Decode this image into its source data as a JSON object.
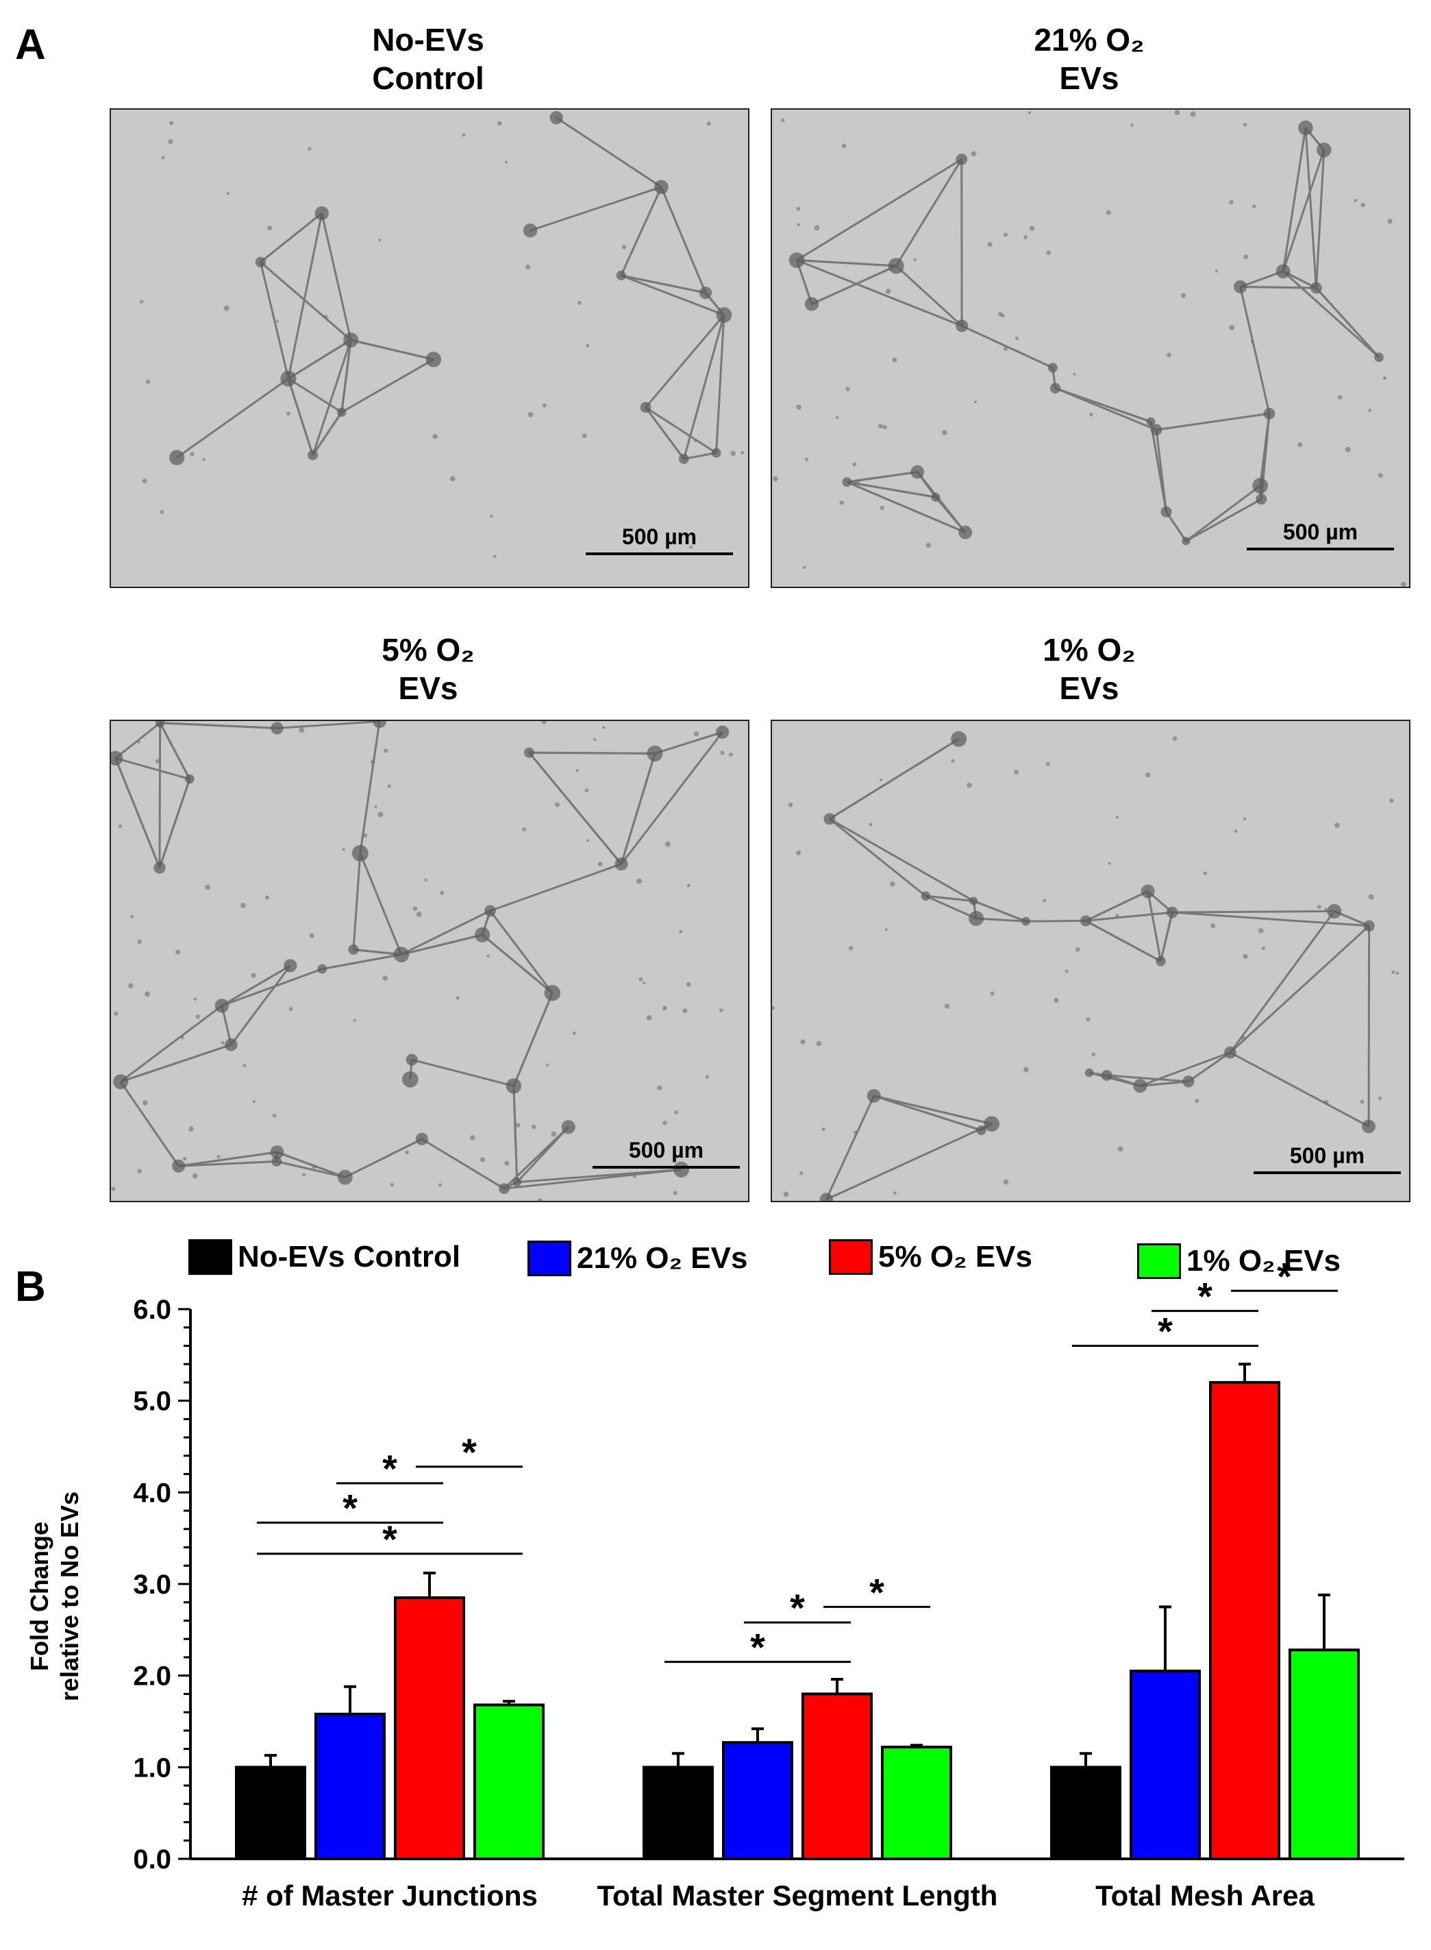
{
  "panels": {
    "a_label": "A",
    "b_label": "B"
  },
  "images": [
    {
      "title_line1": "No-EVs",
      "title_line2": "Control",
      "scale_label": "500 µm"
    },
    {
      "title_line1": "21% O₂",
      "title_line2": "EVs",
      "scale_label": "500 µm"
    },
    {
      "title_line1": "5% O₂",
      "title_line2": "EVs",
      "scale_label": "500 µm"
    },
    {
      "title_line1": "1% O₂",
      "title_line2": "EVs",
      "scale_label": "500 µm"
    }
  ],
  "legend": [
    {
      "label": "No-EVs Control",
      "color": "#000000"
    },
    {
      "label": "21% O₂ EVs",
      "color": "#0000ff"
    },
    {
      "label": "5% O₂ EVs",
      "color": "#ff0000"
    },
    {
      "label": "1% O₂ EVs",
      "color": "#00ff00"
    }
  ],
  "chart_data": {
    "type": "bar",
    "ylabel_line1": "Fold Change",
    "ylabel_line2": "relative to No EVs",
    "ylim": [
      0,
      6
    ],
    "yticks": [
      "0.0",
      "1.0",
      "2.0",
      "3.0",
      "4.0",
      "5.0",
      "6.0"
    ],
    "categories": [
      "# of Master Junctions",
      "Total Master Segment Length",
      "Total Mesh Area"
    ],
    "series": [
      {
        "name": "No-EVs Control",
        "color": "#000000",
        "values": [
          1.0,
          1.0,
          1.0
        ],
        "errors": [
          0.13,
          0.15,
          0.15
        ]
      },
      {
        "name": "21% O₂ EVs",
        "color": "#0000ff",
        "values": [
          1.58,
          1.27,
          2.05
        ],
        "errors": [
          0.3,
          0.15,
          0.7
        ]
      },
      {
        "name": "5% O₂ EVs",
        "color": "#ff0000",
        "values": [
          2.85,
          1.8,
          5.2
        ],
        "errors": [
          0.27,
          0.16,
          0.2
        ]
      },
      {
        "name": "1% O₂ EVs",
        "color": "#00ff00",
        "values": [
          1.68,
          1.22,
          2.28
        ],
        "errors": [
          0.04,
          0.02,
          0.6
        ]
      }
    ],
    "significance": [
      {
        "group": 0,
        "from": 0,
        "to": 2,
        "y": 3.67,
        "label": "*"
      },
      {
        "group": 0,
        "from": 0,
        "to": 3,
        "y": 3.33,
        "label": "*"
      },
      {
        "group": 0,
        "from": 1,
        "to": 2,
        "y": 4.1,
        "label": "*"
      },
      {
        "group": 0,
        "from": 2,
        "to": 3,
        "y": 4.28,
        "label": "*"
      },
      {
        "group": 1,
        "from": 0,
        "to": 2,
        "y": 2.15,
        "label": "*"
      },
      {
        "group": 1,
        "from": 1,
        "to": 2,
        "y": 2.58,
        "label": "*"
      },
      {
        "group": 1,
        "from": 2,
        "to": 3,
        "y": 2.75,
        "label": "*"
      },
      {
        "group": 2,
        "from": 0,
        "to": 2,
        "y": 5.6,
        "label": "*"
      },
      {
        "group": 2,
        "from": 1,
        "to": 2,
        "y": 5.98,
        "label": "*"
      },
      {
        "group": 2,
        "from": 2,
        "to": 3,
        "y": 6.2,
        "label": "*"
      }
    ]
  }
}
